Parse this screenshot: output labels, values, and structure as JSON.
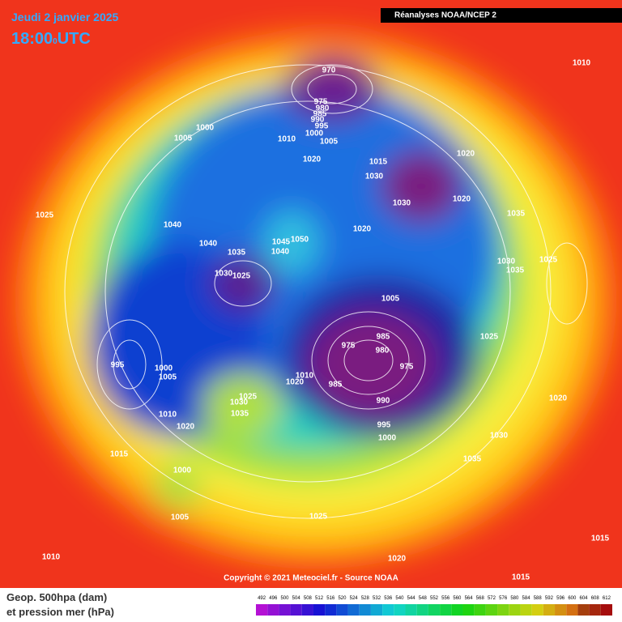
{
  "header": {
    "date": "Jeudi 2 janvier 2025",
    "time": "18:00",
    "time_sub": "0",
    "time_zone": "UTC",
    "source": "Réanalyses NOAA/NCEP 2"
  },
  "footer": {
    "copyright": "Copyright © 2021 Meteociel.fr - Source NOAA",
    "legend_line1": "Geop. 500hpa (dam)",
    "legend_line2": "et pression mer (hPa)"
  },
  "scale": {
    "ticks": [
      492,
      496,
      500,
      504,
      508,
      512,
      516,
      520,
      524,
      528,
      532,
      536,
      540,
      544,
      548,
      552,
      556,
      560,
      564,
      568,
      572,
      576,
      580,
      584,
      588,
      592,
      596,
      600,
      604,
      608,
      612
    ]
  },
  "isobar_labels": [
    "970",
    "975",
    "980",
    "985",
    "990",
    "995",
    "1000",
    "1005",
    "1010",
    "1000",
    "1005",
    "1020",
    "1015",
    "1030",
    "1020",
    "1030",
    "1020",
    "1035",
    "1020",
    "1025",
    "1040",
    "1040",
    "1035",
    "1045",
    "1050",
    "1040",
    "1030",
    "1025",
    "1030",
    "1025",
    "1035",
    "1005",
    "1025",
    "975",
    "985",
    "980",
    "975",
    "995",
    "1000",
    "1005",
    "1010",
    "1020",
    "985",
    "990",
    "1025",
    "1030",
    "1035",
    "1010",
    "1020",
    "995",
    "1000",
    "1020",
    "1030",
    "1015",
    "1035",
    "1000",
    "1005",
    "1025",
    "1010",
    "1020",
    "1015",
    "1015",
    "1010"
  ]
}
